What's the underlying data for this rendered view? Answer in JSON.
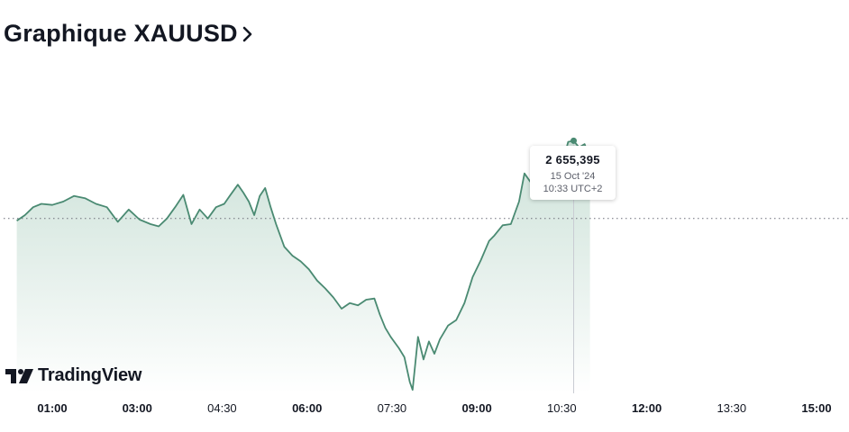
{
  "header": {
    "title": "Graphique XAUUSD",
    "chevron_icon": "chevron-right-icon"
  },
  "tooltip": {
    "price": "2 655,395",
    "date": "15 Oct '24",
    "time": "10:33 UTC+2"
  },
  "brand": {
    "logo_icon": "tradingview-logo-icon",
    "name": "TradingView"
  },
  "colors": {
    "line": "#4a8a72",
    "fill_top": "#c8dfd5",
    "fill_bottom": "#ffffff",
    "crosshair": "#c9ccd3",
    "baseline_dots": "#6a6d78",
    "text": "#131722"
  },
  "chart_data": {
    "type": "area",
    "x_tick_labels": [
      {
        "label": "01:00",
        "bold": true
      },
      {
        "label": "03:00",
        "bold": true
      },
      {
        "label": "04:30",
        "bold": false
      },
      {
        "label": "06:00",
        "bold": true
      },
      {
        "label": "07:30",
        "bold": false
      },
      {
        "label": "09:00",
        "bold": true
      },
      {
        "label": "10:30",
        "bold": false
      },
      {
        "label": "12:00",
        "bold": true
      },
      {
        "label": "13:30",
        "bold": false
      },
      {
        "label": "15:00",
        "bold": true
      }
    ],
    "x_range_hours": [
      0.35,
      15.0
    ],
    "y_range": [
      2633.0,
      2657.5
    ],
    "previous_close": 2648.5,
    "hover": {
      "t": 10.55,
      "value": 2655.395
    },
    "series": [
      {
        "points": [
          [
            0.35,
            2648.3
          ],
          [
            0.5,
            2648.8
          ],
          [
            0.65,
            2649.5
          ],
          [
            0.8,
            2649.8
          ],
          [
            1.0,
            2649.7
          ],
          [
            1.2,
            2650.0
          ],
          [
            1.4,
            2650.5
          ],
          [
            1.6,
            2650.3
          ],
          [
            1.8,
            2649.8
          ],
          [
            2.0,
            2649.5
          ],
          [
            2.2,
            2648.2
          ],
          [
            2.4,
            2649.3
          ],
          [
            2.6,
            2648.4
          ],
          [
            2.8,
            2648.0
          ],
          [
            2.95,
            2647.8
          ],
          [
            3.1,
            2648.5
          ],
          [
            3.25,
            2649.5
          ],
          [
            3.4,
            2650.6
          ],
          [
            3.55,
            2648.0
          ],
          [
            3.7,
            2649.3
          ],
          [
            3.85,
            2648.5
          ],
          [
            4.0,
            2649.5
          ],
          [
            4.15,
            2649.8
          ],
          [
            4.25,
            2650.5
          ],
          [
            4.4,
            2651.5
          ],
          [
            4.5,
            2650.8
          ],
          [
            4.6,
            2650.0
          ],
          [
            4.7,
            2648.8
          ],
          [
            4.8,
            2650.5
          ],
          [
            4.9,
            2651.2
          ],
          [
            5.0,
            2649.5
          ],
          [
            5.1,
            2648.0
          ],
          [
            5.25,
            2646.0
          ],
          [
            5.4,
            2645.2
          ],
          [
            5.55,
            2644.7
          ],
          [
            5.7,
            2644.0
          ],
          [
            5.85,
            2643.0
          ],
          [
            6.0,
            2642.3
          ],
          [
            6.15,
            2641.5
          ],
          [
            6.3,
            2640.5
          ],
          [
            6.45,
            2641.0
          ],
          [
            6.6,
            2640.8
          ],
          [
            6.75,
            2641.3
          ],
          [
            6.9,
            2641.4
          ],
          [
            7.0,
            2640.0
          ],
          [
            7.1,
            2638.8
          ],
          [
            7.2,
            2638.0
          ],
          [
            7.35,
            2637.0
          ],
          [
            7.45,
            2636.2
          ],
          [
            7.55,
            2634.0
          ],
          [
            7.6,
            2633.3
          ],
          [
            7.7,
            2638.0
          ],
          [
            7.8,
            2636.0
          ],
          [
            7.9,
            2637.6
          ],
          [
            8.0,
            2636.5
          ],
          [
            8.1,
            2637.8
          ],
          [
            8.25,
            2639.0
          ],
          [
            8.4,
            2639.5
          ],
          [
            8.55,
            2641.0
          ],
          [
            8.7,
            2643.3
          ],
          [
            8.85,
            2644.8
          ],
          [
            9.0,
            2646.5
          ],
          [
            9.1,
            2647.0
          ],
          [
            9.25,
            2647.9
          ],
          [
            9.4,
            2648.0
          ],
          [
            9.55,
            2650.0
          ],
          [
            9.65,
            2652.5
          ],
          [
            9.75,
            2651.8
          ],
          [
            9.85,
            2651.1
          ],
          [
            9.95,
            2650.5
          ],
          [
            10.05,
            2650.3
          ],
          [
            10.15,
            2652.0
          ],
          [
            10.25,
            2651.0
          ],
          [
            10.35,
            2653.5
          ],
          [
            10.45,
            2655.3
          ],
          [
            10.55,
            2655.395
          ],
          [
            10.65,
            2654.8
          ],
          [
            10.75,
            2655.1
          ],
          [
            10.85,
            2653.9
          ]
        ]
      }
    ]
  }
}
